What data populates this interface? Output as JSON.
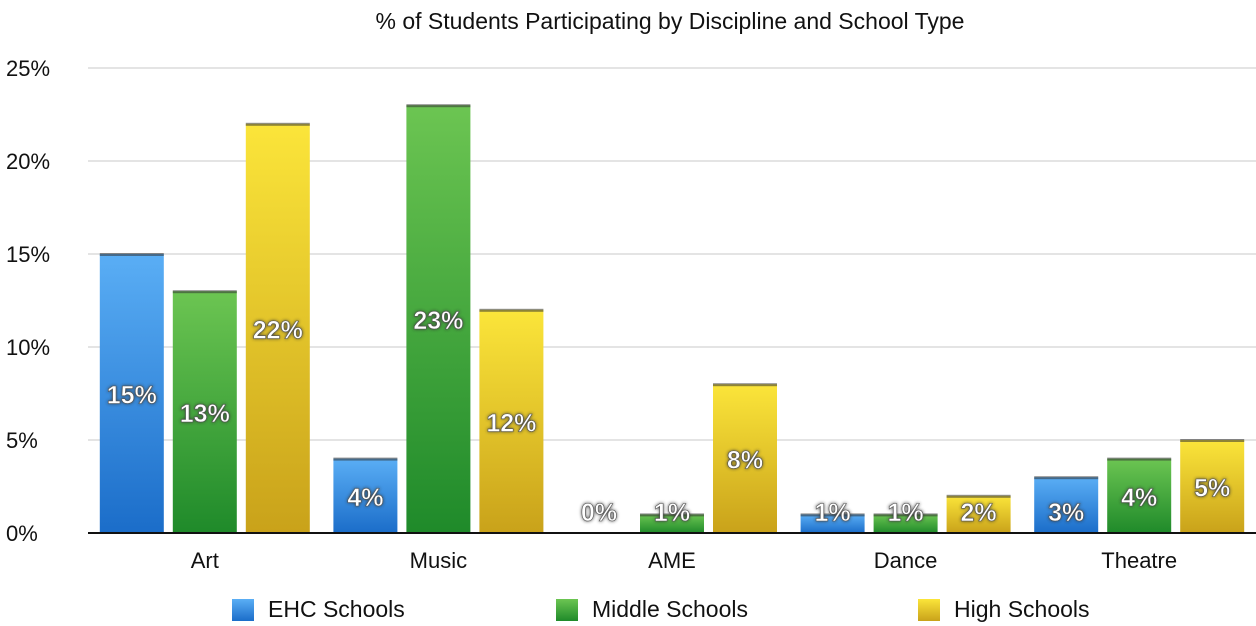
{
  "chart_data": {
    "type": "bar",
    "title": "% of Students Participating by Discipline and School Type",
    "xlabel": "",
    "ylabel": "",
    "categories": [
      "Art",
      "Music",
      "AME",
      "Dance",
      "Theatre"
    ],
    "ylim": [
      0,
      25
    ],
    "yticks": [
      "0%",
      "5%",
      "10%",
      "15%",
      "20%",
      "25%"
    ],
    "grid": true,
    "legend_position": "bottom",
    "series": [
      {
        "name": "EHC Schools",
        "values": [
          15,
          4,
          0,
          1,
          3
        ],
        "labels": [
          "15%",
          "4%",
          "0%",
          "1%",
          "3%"
        ],
        "color": "#2f86e0"
      },
      {
        "name": "Middle Schools",
        "values": [
          13,
          23,
          1,
          1,
          4
        ],
        "labels": [
          "13%",
          "23%",
          "1%",
          "1%",
          "4%"
        ],
        "color": "#2e9e3a"
      },
      {
        "name": "High Schools",
        "values": [
          22,
          12,
          8,
          2,
          5
        ],
        "labels": [
          "22%",
          "12%",
          "8%",
          "2%",
          "5%"
        ],
        "color": "#e4c118"
      }
    ]
  }
}
